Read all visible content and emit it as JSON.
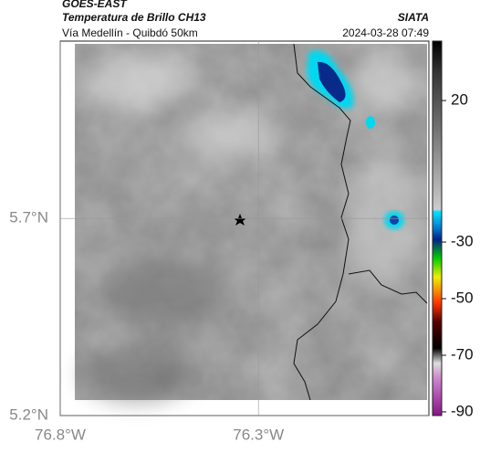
{
  "header": {
    "title": "GOES-EAST",
    "subtitle": "Temperatura de Brillo CH13",
    "region": "Vía Medellín - Quibdó 50km",
    "source": "SIATA",
    "timestamp": "2024-03-28 07:49"
  },
  "map": {
    "xlim": [
      -76.8,
      -75.87
    ],
    "ylim": [
      5.2,
      6.15
    ],
    "grid": true,
    "xticks": [
      {
        "value": -76.8,
        "label": "76.8°W"
      },
      {
        "value": -76.3,
        "label": "76.3°W"
      }
    ],
    "yticks": [
      {
        "value": 5.7,
        "label": "5.7°N"
      },
      {
        "value": 5.2,
        "label": "5.2°N"
      }
    ]
  },
  "colorbar": {
    "lim": [
      -91.3,
      41
    ],
    "ticks": [
      20,
      -30,
      -50,
      -70,
      -90
    ]
  }
}
